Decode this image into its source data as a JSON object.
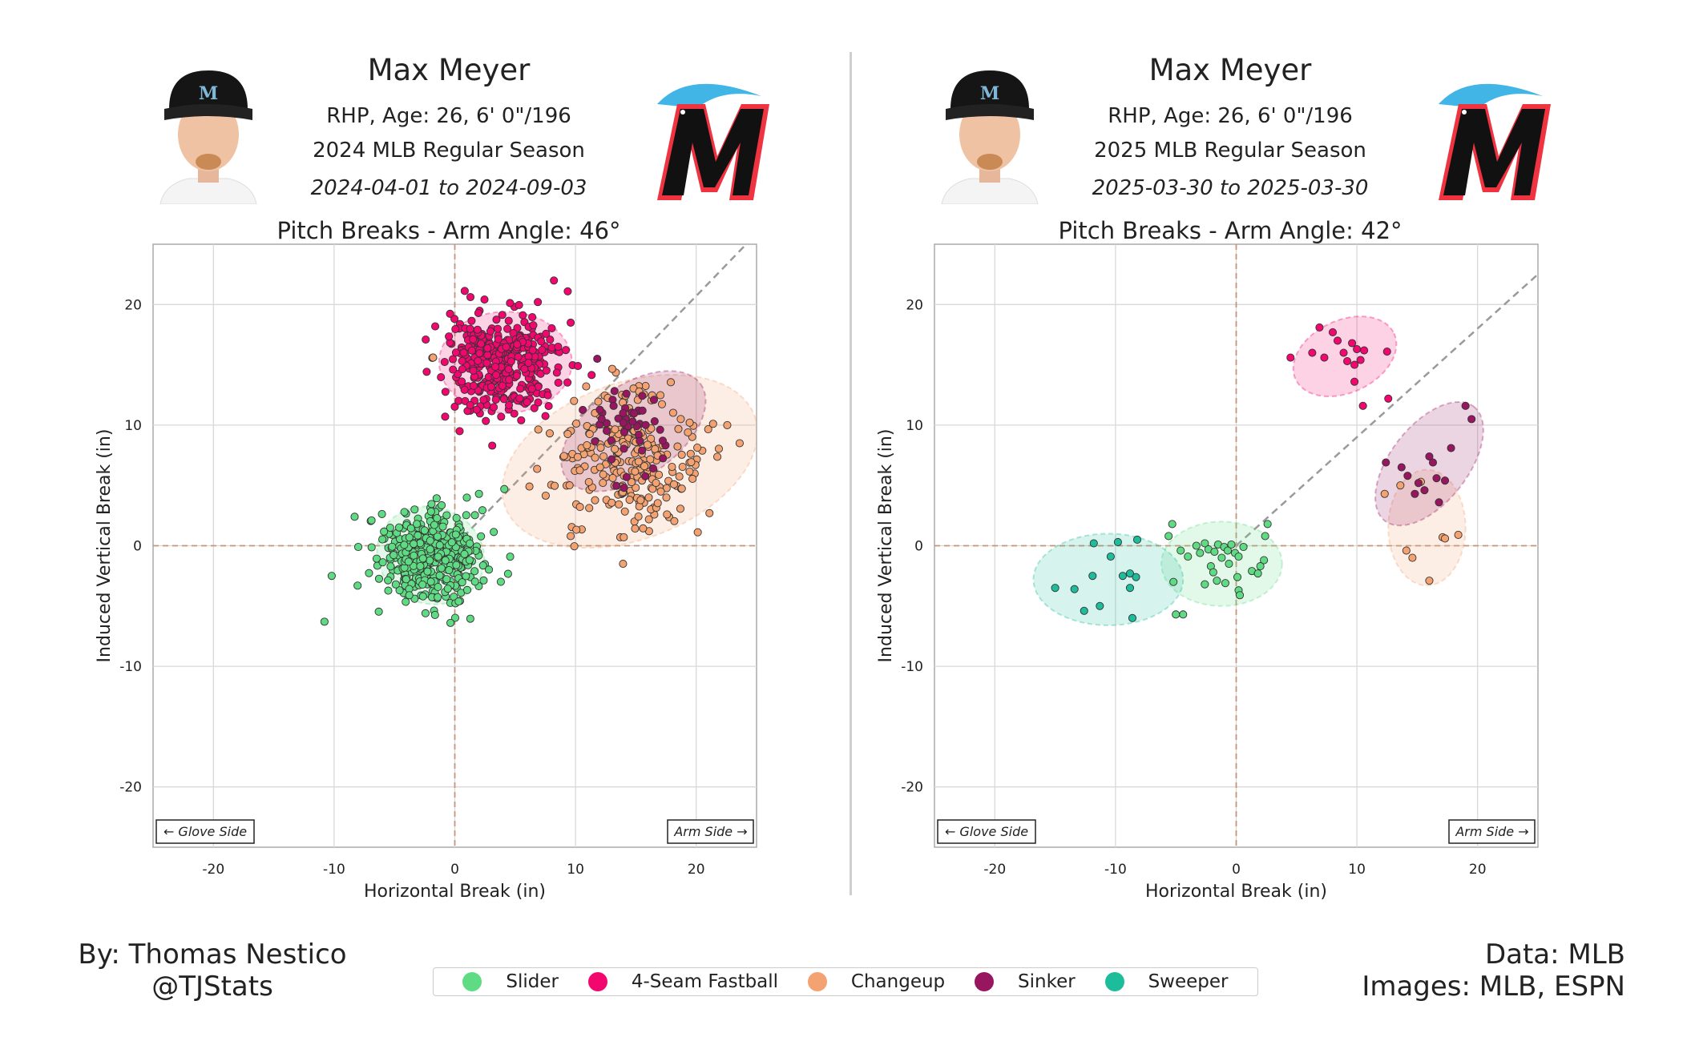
{
  "panels": [
    {
      "player_name": "Max Meyer",
      "info": "RHP, Age: 26, 6' 0\"/196",
      "season": "2024 MLB Regular Season",
      "dates": "2024-04-01 to 2024-09-03",
      "plot_title": "Pitch Breaks - Arm Angle: 46°",
      "xlabel": "Horizontal Break (in)",
      "ylabel": "Induced Vertical Break (in)",
      "glove_side": "← Glove Side",
      "arm_side": "Arm Side →"
    },
    {
      "player_name": "Max Meyer",
      "info": "RHP, Age: 26, 6' 0\"/196",
      "season": "2025 MLB Regular Season",
      "dates": "2025-03-30 to 2025-03-30",
      "plot_title": "Pitch Breaks - Arm Angle: 42°",
      "xlabel": "Horizontal Break (in)",
      "ylabel": "Induced Vertical Break (in)",
      "glove_side": "← Glove Side",
      "arm_side": "Arm Side →"
    }
  ],
  "footer": {
    "author_line1": "By: Thomas Nestico",
    "author_line2": "@TJStats",
    "data_line1": "Data: MLB",
    "data_line2": "Images: MLB, ESPN"
  },
  "legend": [
    {
      "label": "Slider",
      "color": "#5fdc83"
    },
    {
      "label": "4-Seam Fastball",
      "color": "#f2076f"
    },
    {
      "label": "Changeup",
      "color": "#f4a271"
    },
    {
      "label": "Sinker",
      "color": "#981560"
    },
    {
      "label": "Sweeper",
      "color": "#1dbc9a"
    }
  ],
  "chart_data": [
    {
      "type": "scatter",
      "xlim": [
        -25,
        25
      ],
      "ylim": [
        -25,
        25
      ],
      "xticks": [
        -20,
        -10,
        0,
        10,
        20
      ],
      "yticks": [
        -20,
        -10,
        0,
        10,
        20
      ],
      "grid": true,
      "arm_angle_deg": 46,
      "series": [
        {
          "name": "Slider",
          "color": "#5fdc83",
          "mean": [
            -2.0,
            -0.8
          ],
          "sd": [
            2.0,
            1.9
          ],
          "n": 420,
          "ellipse": {
            "cx": -2.0,
            "cy": -0.8,
            "rx": 4.5,
            "ry": 4.0,
            "angle": 20
          },
          "outliers": [
            [
              -10.8,
              -6.3
            ],
            [
              -10.2,
              -2.5
            ],
            [
              -8.3,
              2.4
            ],
            [
              -8.0,
              -0.1
            ],
            [
              -6.9,
              2.1
            ],
            [
              2.0,
              4.3
            ],
            [
              4.1,
              4.7
            ]
          ]
        },
        {
          "name": "4-Seam Fastball",
          "color": "#f2076f",
          "mean": [
            4.0,
            15.2
          ],
          "sd": [
            2.3,
            2.0
          ],
          "n": 400,
          "ellipse": {
            "cx": 4.2,
            "cy": 15.2,
            "rx": 5.5,
            "ry": 4.2,
            "angle": 0
          },
          "outliers": [
            [
              -1.8,
              15.6
            ],
            [
              -0.8,
              10.7
            ],
            [
              0.4,
              9.5
            ],
            [
              3.1,
              8.3
            ],
            [
              9.6,
              18.5
            ],
            [
              10.2,
              14.9
            ]
          ]
        },
        {
          "name": "Changeup",
          "color": "#f4a271",
          "mean": [
            14.5,
            7.0
          ],
          "sd": [
            3.0,
            2.8
          ],
          "n": 260,
          "ellipse": {
            "cx": 14.5,
            "cy": 7.0,
            "rx": 11.0,
            "ry": 6.5,
            "angle": -20
          },
          "outliers": [
            [
              -1.8,
              15.6
            ],
            [
              23.6,
              8.5
            ],
            [
              9.6,
              0.8
            ],
            [
              21.1,
              2.7
            ],
            [
              14.0,
              0.7
            ]
          ]
        },
        {
          "name": "Sinker",
          "color": "#981560",
          "mean": [
            14.5,
            9.5
          ],
          "sd": [
            2.0,
            2.0
          ],
          "n": 45,
          "ellipse": {
            "cx": 14.8,
            "cy": 9.5,
            "rx": 6.8,
            "ry": 3.8,
            "angle": -35
          },
          "outliers": [
            [
              11.8,
              15.5
            ],
            [
              16.5,
              12.1
            ]
          ]
        }
      ]
    },
    {
      "type": "scatter",
      "xlim": [
        -25,
        25
      ],
      "ylim": [
        -25,
        25
      ],
      "xticks": [
        -20,
        -10,
        0,
        10,
        20
      ],
      "yticks": [
        -20,
        -10,
        0,
        10,
        20
      ],
      "grid": true,
      "arm_angle_deg": 42,
      "series": [
        {
          "name": "Slider",
          "color": "#5fdc83",
          "mean": [
            -1.0,
            -1.6
          ],
          "sd": [
            2.0,
            1.5
          ],
          "n": 0,
          "ellipse": {
            "cx": -1.2,
            "cy": -1.5,
            "rx": 5.0,
            "ry": 3.5,
            "angle": 0
          },
          "points": [
            [
              -5.3,
              1.8
            ],
            [
              -5.6,
              0.8
            ],
            [
              -5.2,
              -3.0
            ],
            [
              -4.6,
              -0.4
            ],
            [
              -4.0,
              -0.9
            ],
            [
              -3.3,
              0.0
            ],
            [
              -3.0,
              -0.6
            ],
            [
              -2.6,
              0.2
            ],
            [
              -2.3,
              -0.3
            ],
            [
              -2.1,
              -1.7
            ],
            [
              -1.8,
              -0.5
            ],
            [
              -1.5,
              0.1
            ],
            [
              -1.2,
              -1.0
            ],
            [
              -1.0,
              -0.1
            ],
            [
              -0.7,
              -0.4
            ],
            [
              -0.4,
              0.1
            ],
            [
              -0.1,
              -0.6
            ],
            [
              0.2,
              -0.9
            ],
            [
              -0.6,
              -1.5
            ],
            [
              -1.6,
              -2.9
            ],
            [
              -2.6,
              -3.2
            ],
            [
              -1.9,
              -2.2
            ],
            [
              -0.9,
              -3.1
            ],
            [
              -4.4,
              -5.7
            ],
            [
              -5.0,
              -5.7
            ],
            [
              0.2,
              -3.7
            ],
            [
              0.3,
              -4.1
            ],
            [
              0.6,
              -0.1
            ],
            [
              1.3,
              -2.1
            ],
            [
              2.3,
              -1.2
            ],
            [
              2.6,
              1.8
            ],
            [
              2.4,
              0.8
            ],
            [
              2.0,
              -1.7
            ],
            [
              1.8,
              -2.3
            ],
            [
              0.1,
              -2.6
            ]
          ]
        },
        {
          "name": "4-Seam Fastball",
          "color": "#f2076f",
          "mean": [
            9.0,
            15.8
          ],
          "sd": [
            2.0,
            1.8
          ],
          "n": 0,
          "ellipse": {
            "cx": 9.0,
            "cy": 15.7,
            "rx": 4.5,
            "ry": 3.0,
            "angle": -25
          },
          "points": [
            [
              4.5,
              15.6
            ],
            [
              6.3,
              16.0
            ],
            [
              6.9,
              18.1
            ],
            [
              7.3,
              15.6
            ],
            [
              8.0,
              17.7
            ],
            [
              8.4,
              17.0
            ],
            [
              8.9,
              16.0
            ],
            [
              9.2,
              15.3
            ],
            [
              9.6,
              16.8
            ],
            [
              10.0,
              16.3
            ],
            [
              10.3,
              15.4
            ],
            [
              9.8,
              13.6
            ],
            [
              10.6,
              16.2
            ],
            [
              12.5,
              16.1
            ],
            [
              10.5,
              11.6
            ],
            [
              12.6,
              12.2
            ],
            [
              9.8,
              15.0
            ]
          ]
        },
        {
          "name": "Changeup",
          "color": "#f4a271",
          "mean": [
            15.8,
            2.0
          ],
          "sd": [
            1.2,
            2.5
          ],
          "n": 0,
          "ellipse": {
            "cx": 15.8,
            "cy": 1.5,
            "rx": 3.2,
            "ry": 4.8,
            "angle": 0
          },
          "points": [
            [
              12.3,
              4.3
            ],
            [
              13.6,
              5.0
            ],
            [
              14.1,
              -0.4
            ],
            [
              14.6,
              -1.0
            ],
            [
              15.3,
              5.3
            ],
            [
              16.0,
              -2.9
            ],
            [
              17.1,
              0.7
            ],
            [
              17.3,
              0.6
            ],
            [
              18.4,
              0.9
            ]
          ]
        },
        {
          "name": "Sinker",
          "color": "#981560",
          "mean": [
            15.8,
            6.5
          ],
          "sd": [
            1.8,
            2.0
          ],
          "n": 0,
          "ellipse": {
            "cx": 16.0,
            "cy": 6.8,
            "rx": 6.0,
            "ry": 3.2,
            "angle": -52
          },
          "points": [
            [
              12.4,
              6.9
            ],
            [
              13.7,
              6.5
            ],
            [
              14.2,
              5.8
            ],
            [
              14.8,
              4.3
            ],
            [
              15.1,
              5.2
            ],
            [
              15.6,
              4.6
            ],
            [
              16.0,
              7.4
            ],
            [
              16.3,
              6.9
            ],
            [
              16.8,
              3.6
            ],
            [
              17.3,
              5.4
            ],
            [
              17.8,
              8.1
            ],
            [
              19.0,
              11.6
            ],
            [
              19.5,
              10.5
            ],
            [
              16.6,
              5.6
            ]
          ]
        },
        {
          "name": "Sweeper",
          "color": "#1dbc9a",
          "mean": [
            -10.5,
            -3.0
          ],
          "sd": [
            2.2,
            2.0
          ],
          "n": 0,
          "ellipse": {
            "cx": -10.6,
            "cy": -2.8,
            "rx": 6.2,
            "ry": 3.8,
            "angle": 0
          },
          "points": [
            [
              -15.0,
              -3.5
            ],
            [
              -13.4,
              -3.6
            ],
            [
              -12.6,
              -5.4
            ],
            [
              -11.9,
              -2.5
            ],
            [
              -11.3,
              -5.0
            ],
            [
              -10.4,
              -0.9
            ],
            [
              -9.8,
              0.3
            ],
            [
              -9.4,
              -2.5
            ],
            [
              -8.8,
              -2.3
            ],
            [
              -8.8,
              -3.5
            ],
            [
              -8.6,
              -6.0
            ],
            [
              -8.3,
              -2.6
            ],
            [
              -8.2,
              0.5
            ],
            [
              -11.8,
              0.2
            ]
          ]
        }
      ]
    }
  ]
}
